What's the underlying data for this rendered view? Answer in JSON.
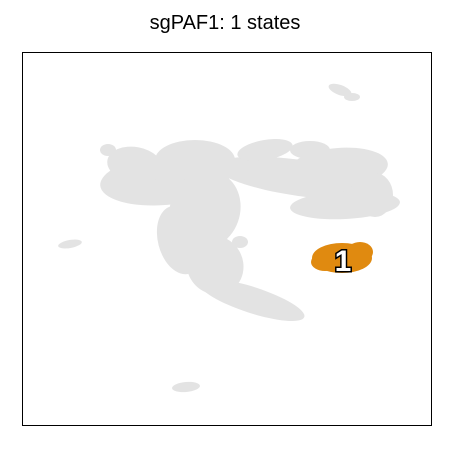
{
  "chart_data": {
    "type": "scatter",
    "title": "sgPAF1: 1 states",
    "xlabel": "",
    "ylabel": "",
    "grid": false,
    "legend": "none",
    "background_color": "#e3e3e3",
    "highlight_color": "#e08a10",
    "label_text_color": "#ffffff",
    "label_outline_color": "#000000",
    "series": [
      {
        "state": "1",
        "color": "#e08a10"
      }
    ],
    "labels": [
      "1"
    ]
  }
}
